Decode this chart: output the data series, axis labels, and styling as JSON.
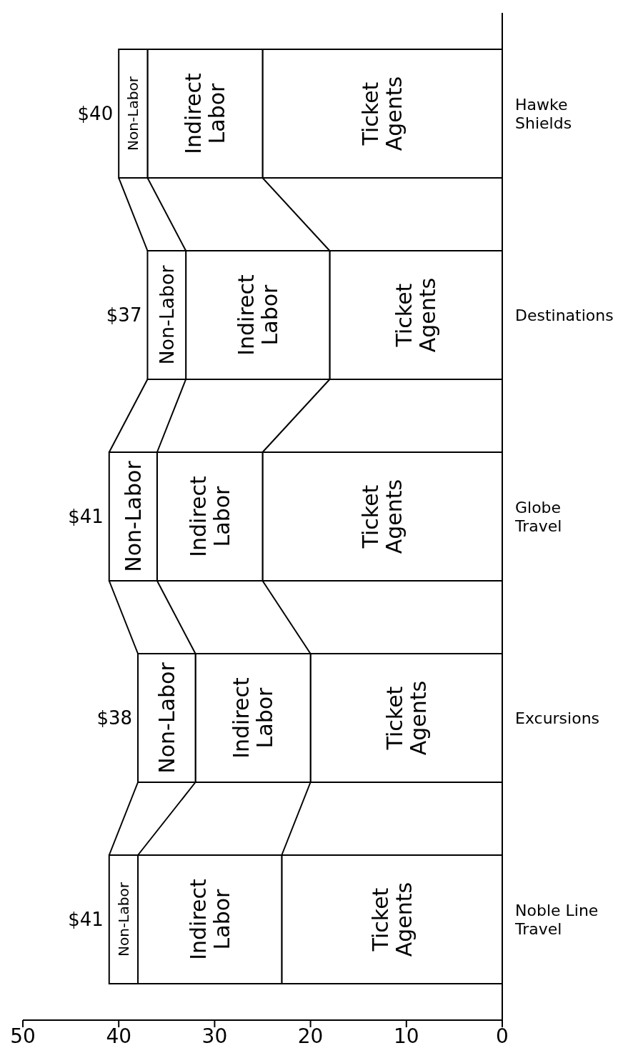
{
  "chart_data": {
    "type": "bar",
    "stacked": true,
    "orientation": "horizontal",
    "categories": [
      "Hawke Shields",
      "Destinations",
      "Globe Travel",
      "Excursions",
      "Noble Line Travel"
    ],
    "series": [
      {
        "name": "Ticket Agents",
        "color": "#ffffff",
        "values": [
          25,
          18,
          25,
          20,
          23
        ]
      },
      {
        "name": "Indirect Labor",
        "color": "#ffffff",
        "values": [
          12,
          15,
          11,
          12,
          15
        ]
      },
      {
        "name": "Non-Labor",
        "color": "#ffffff",
        "values": [
          3,
          4,
          5,
          6,
          3
        ]
      }
    ],
    "totals": [
      "$40",
      "$37",
      "$41",
      "$38",
      "$41"
    ],
    "xlim": [
      50,
      0
    ],
    "xticks": [
      50,
      40,
      30,
      20,
      10,
      0
    ],
    "grid": false,
    "legend": false
  }
}
